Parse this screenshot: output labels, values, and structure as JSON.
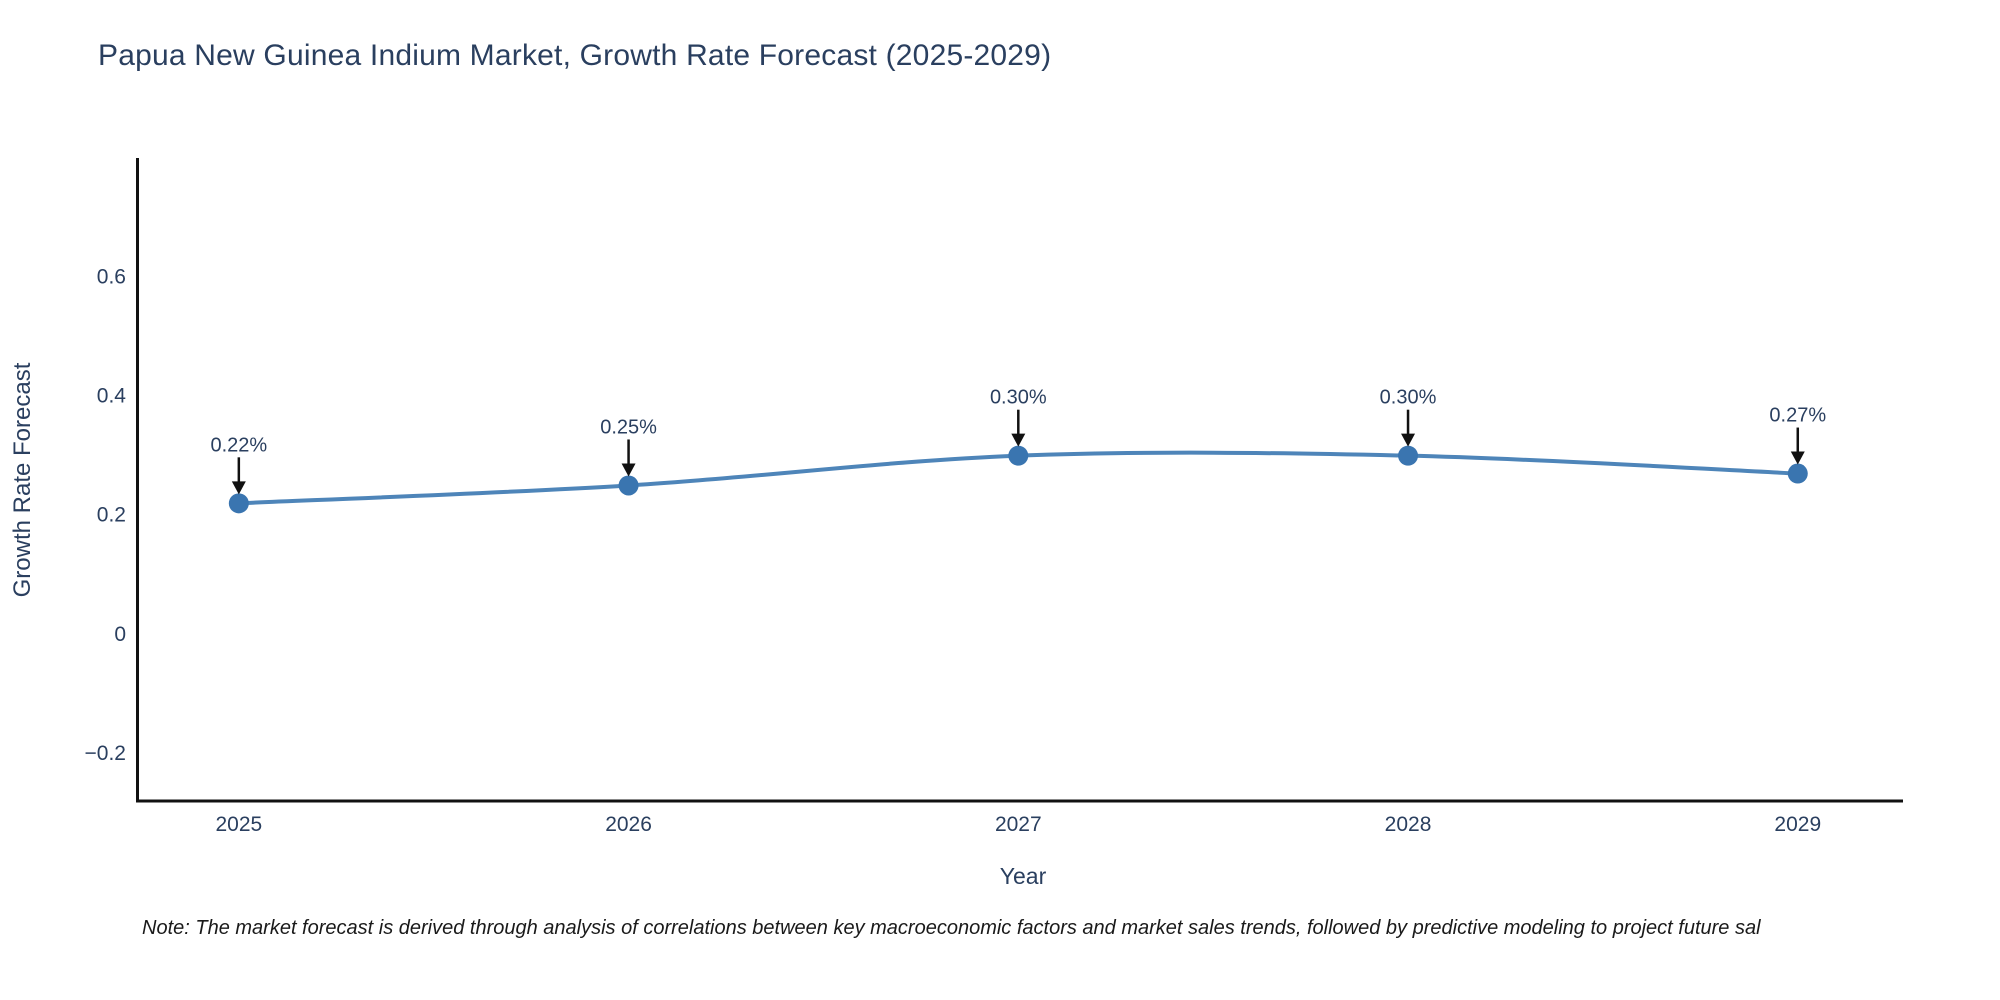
{
  "title": "Papua New Guinea Indium Market, Growth Rate Forecast (2025-2029)",
  "note": "Note: The market forecast is derived through analysis of correlations between key macroeconomic factors and market sales trends, followed by predictive modeling to project future sal",
  "chart_data": {
    "type": "line",
    "title": "Papua New Guinea Indium Market, Growth Rate Forecast (2025-2029)",
    "xlabel": "Year",
    "ylabel": "Growth Rate Forecast",
    "x": [
      2025,
      2026,
      2027,
      2028,
      2029
    ],
    "xticklabels": [
      "2025",
      "2026",
      "2027",
      "2028",
      "2029"
    ],
    "series": [
      {
        "name": "Growth Rate Forecast",
        "values": [
          0.22,
          0.25,
          0.3,
          0.3,
          0.27
        ]
      }
    ],
    "point_labels": [
      "0.22%",
      "0.25%",
      "0.30%",
      "0.30%",
      "0.27%"
    ],
    "yticks": [
      {
        "value": -0.2,
        "label": "−0.2"
      },
      {
        "value": 0,
        "label": "0"
      },
      {
        "value": 0.2,
        "label": "0.2"
      },
      {
        "value": 0.4,
        "label": "0.4"
      },
      {
        "value": 0.6,
        "label": "0.6"
      }
    ],
    "ylim": [
      -0.28,
      0.8
    ],
    "grid": false,
    "legend": "none",
    "curve": "spline",
    "annotation_arrow": "down",
    "colors": {
      "line": "#4e85b9",
      "marker": "#3a75b0",
      "axis": "#111111",
      "text": "#2a3f5f",
      "annotation_text": "#2a3f5f",
      "note_text": "#1a1a1a",
      "background": "#ffffff"
    }
  }
}
